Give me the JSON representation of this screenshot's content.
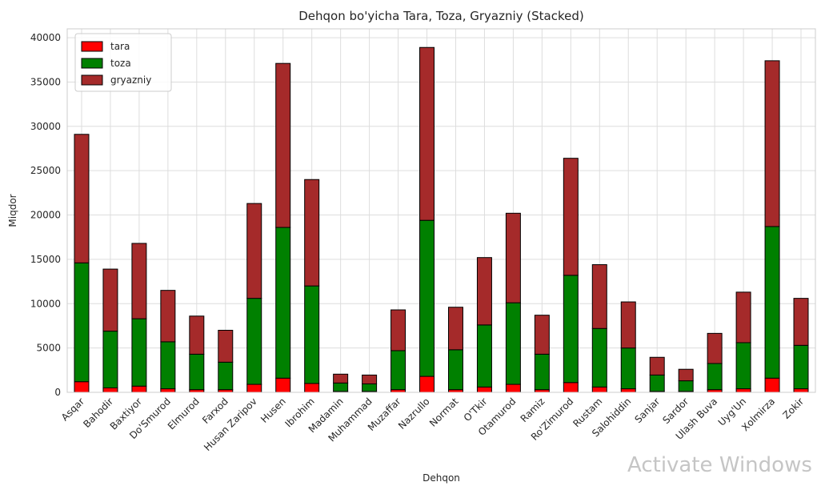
{
  "chart_data": {
    "type": "bar",
    "stacked": true,
    "title": "Dehqon bo'yicha Tara, Toza, Gryazniy (Stacked)",
    "xlabel": "Dehqon",
    "ylabel": "Miqdor",
    "ylim": [
      0,
      41000
    ],
    "yticks": [
      0,
      5000,
      10000,
      15000,
      20000,
      25000,
      30000,
      35000,
      40000
    ],
    "grid": true,
    "legend_position": "top-left",
    "categories": [
      "Asqar",
      "Bahodir",
      "Baxtiyor",
      "Do'Smurod",
      "Elmurod",
      "Farxod",
      "Husan Zaripov",
      "Husen",
      "Ibrohim",
      "Madamin",
      "Muhammad",
      "Muzaffar",
      "Nazrullo",
      "Normat",
      "O'Tkir",
      "Otamurod",
      "Ramiz",
      "Ro'Zimurod",
      "Rustam",
      "Salohiddin",
      "Sanjar",
      "Sardor",
      "Ulash Buva",
      "Uyg'Un",
      "Xolmirza",
      "Zokir"
    ],
    "series": [
      {
        "name": "tara",
        "color": "#ff0000",
        "values": [
          1200,
          500,
          700,
          400,
          300,
          300,
          900,
          1600,
          1000,
          100,
          100,
          300,
          1800,
          300,
          600,
          900,
          300,
          1100,
          600,
          400,
          100,
          100,
          300,
          400,
          1600,
          400
        ]
      },
      {
        "name": "toza",
        "color": "#008000",
        "values": [
          13400,
          6400,
          7600,
          5300,
          4000,
          3100,
          9700,
          17000,
          11000,
          950,
          850,
          4400,
          17600,
          4500,
          7000,
          9200,
          4000,
          12100,
          6600,
          4600,
          1850,
          1200,
          2950,
          5200,
          17100,
          4900
        ]
      },
      {
        "name": "gryazniy",
        "color": "#a52a2a",
        "values": [
          14500,
          7000,
          8500,
          5800,
          4300,
          3600,
          10700,
          18500,
          12000,
          1000,
          1000,
          4600,
          19500,
          4800,
          7600,
          10100,
          4400,
          13200,
          7200,
          5200,
          2000,
          1300,
          3400,
          5700,
          18700,
          5300
        ]
      }
    ]
  },
  "watermark": "Activate Windows"
}
